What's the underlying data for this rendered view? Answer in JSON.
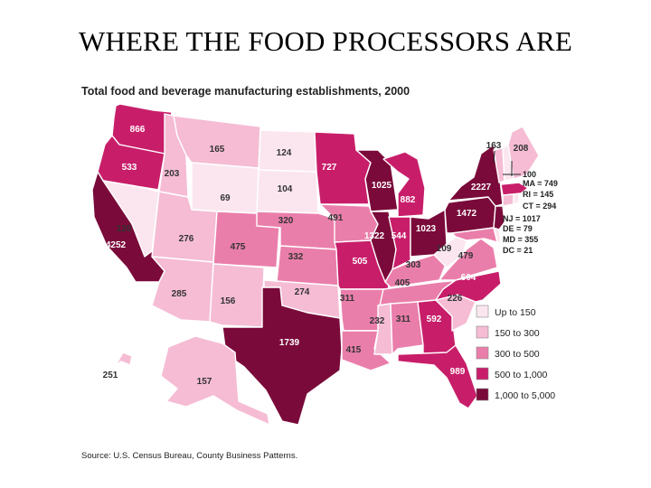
{
  "title": "WHERE THE FOOD PROCESSORS ARE",
  "map_title": "Total food and beverage manufacturing establishments, 2000",
  "source": "Source: U.S. Census Bureau, County Business Patterns.",
  "colors": {
    "c1": "#fbe6ef",
    "c2": "#f5bcd4",
    "c3": "#ea7eab",
    "c4": "#c81e6a",
    "c5": "#7a0a3a"
  },
  "legend": [
    {
      "label": "Up to 150",
      "class": "c1"
    },
    {
      "label": "150 to 300",
      "class": "c2"
    },
    {
      "label": "300 to 500",
      "class": "c3"
    },
    {
      "label": "500 to 1,000",
      "class": "c4"
    },
    {
      "label": "1,000 to 5,000",
      "class": "c5"
    }
  ],
  "states": {
    "WA": {
      "value": "866",
      "class": "c4"
    },
    "OR": {
      "value": "533",
      "class": "c4"
    },
    "CA": {
      "value": "4252",
      "class": "c5"
    },
    "NV": {
      "value": "120",
      "class": "c1"
    },
    "ID": {
      "value": "203",
      "class": "c2"
    },
    "MT": {
      "value": "165",
      "class": "c2"
    },
    "WY": {
      "value": "69",
      "class": "c1"
    },
    "UT": {
      "value": "276",
      "class": "c2"
    },
    "AZ": {
      "value": "285",
      "class": "c2"
    },
    "CO": {
      "value": "475",
      "class": "c3"
    },
    "NM": {
      "value": "156",
      "class": "c2"
    },
    "ND": {
      "value": "124",
      "class": "c1"
    },
    "SD": {
      "value": "104",
      "class": "c1"
    },
    "NE": {
      "value": "320",
      "class": "c3"
    },
    "KS": {
      "value": "332",
      "class": "c3"
    },
    "OK": {
      "value": "274",
      "class": "c2"
    },
    "TX": {
      "value": "1739",
      "class": "c5"
    },
    "MN": {
      "value": "727",
      "class": "c4"
    },
    "IA": {
      "value": "491",
      "class": "c3"
    },
    "MO": {
      "value": "505",
      "class": "c4"
    },
    "AR": {
      "value": "311",
      "class": "c3"
    },
    "LA": {
      "value": "415",
      "class": "c3"
    },
    "WI": {
      "value": "1025",
      "class": "c5"
    },
    "IL": {
      "value": "1322",
      "class": "c5"
    },
    "MI": {
      "value": "882",
      "class": "c4"
    },
    "IN": {
      "value": "544",
      "class": "c4"
    },
    "OH": {
      "value": "1023",
      "class": "c5"
    },
    "KY": {
      "value": "303",
      "class": "c3"
    },
    "TN": {
      "value": "405",
      "class": "c3"
    },
    "MS": {
      "value": "232",
      "class": "c2"
    },
    "AL": {
      "value": "311",
      "class": "c3"
    },
    "GA": {
      "value": "592",
      "class": "c4"
    },
    "FL": {
      "value": "989",
      "class": "c4"
    },
    "SC": {
      "value": "226",
      "class": "c2"
    },
    "NC": {
      "value": "604",
      "class": "c4"
    },
    "VA": {
      "value": "479",
      "class": "c3"
    },
    "WV": {
      "value": "109",
      "class": "c1"
    },
    "PA": {
      "value": "1472",
      "class": "c5"
    },
    "NY": {
      "value": "2227",
      "class": "c5"
    },
    "VT": {
      "value": "163",
      "class": "c2"
    },
    "ME": {
      "value": "208",
      "class": "c2"
    },
    "NH": {
      "value": "100",
      "class": "c1"
    },
    "MA": {
      "value": "749",
      "class": "c4"
    },
    "RI": {
      "value": "145",
      "class": "c1"
    },
    "CT": {
      "value": "294",
      "class": "c2"
    },
    "NJ": {
      "value": "1017",
      "class": "c5"
    },
    "DE": {
      "value": "79",
      "class": "c1"
    },
    "MD": {
      "value": "355",
      "class": "c3"
    },
    "DC": {
      "value": "21",
      "class": "c1"
    },
    "AK": {
      "value": "157",
      "class": "c2"
    },
    "HI": {
      "value": "251",
      "class": "c2"
    }
  },
  "ne_labels": [
    {
      "state": "NH",
      "text": "100"
    },
    {
      "state": "MA",
      "text": "MA = 749"
    },
    {
      "state": "RI",
      "text": "RI = 145"
    },
    {
      "state": "CT",
      "text": "CT = 294"
    },
    {
      "state": "NJ",
      "text": "NJ = 1017"
    },
    {
      "state": "DE",
      "text": "DE = 79"
    },
    {
      "state": "MD",
      "text": "MD = 355"
    },
    {
      "state": "DC",
      "text": "DC = 21"
    }
  ]
}
